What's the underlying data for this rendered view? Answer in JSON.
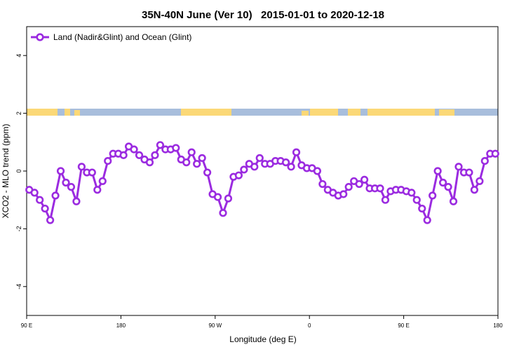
{
  "chart_data": {
    "type": "line",
    "title": "35N-40N June (Ver 10)   2015-01-01 to 2020-12-18",
    "x_label": "Longitude (deg E)",
    "y_label": "XCO2 - MLO trend (ppm)",
    "xlim": [
      90,
      540
    ],
    "xticks": [
      {
        "value": 90,
        "label": "90 E"
      },
      180,
      {
        "value": 270,
        "label": "90 W"
      },
      {
        "value": 360,
        "label": "0"
      },
      {
        "value": 450,
        "label": "90 E"
      },
      {
        "value": 540,
        "label": "180"
      }
    ],
    "ylim": [
      -5,
      5
    ],
    "yticks": [
      -4,
      -2,
      0,
      2,
      4
    ],
    "legend": "top-left",
    "x": [
      92.5,
      97.5,
      102.5,
      107.5,
      112.5,
      117.5,
      122.5,
      127.5,
      132.5,
      137.5,
      142.5,
      147.5,
      152.5,
      157.5,
      162.5,
      167.5,
      172.5,
      177.5,
      182.5,
      187.5,
      192.5,
      197.5,
      202.5,
      207.5,
      212.5,
      217.5,
      222.5,
      227.5,
      232.5,
      237.5,
      242.5,
      247.5,
      252.5,
      257.5,
      262.5,
      267.5,
      272.5,
      277.5,
      282.5,
      287.5,
      292.5,
      297.5,
      302.5,
      307.5,
      312.5,
      317.5,
      322.5,
      327.5,
      332.5,
      337.5,
      342.5,
      347.5,
      352.5,
      357.5,
      362.5,
      367.5,
      372.5,
      377.5,
      382.5,
      387.5,
      392.5,
      397.5,
      402.5,
      407.5,
      412.5,
      417.5,
      422.5,
      427.5,
      432.5,
      437.5,
      442.5,
      447.5,
      452.5,
      457.5,
      462.5,
      467.5,
      472.5,
      477.5,
      482.5,
      487.5,
      492.5,
      497.5,
      502.5,
      507.5,
      512.5,
      517.5,
      522.5,
      527.5,
      532.5,
      537.5
    ],
    "series": [
      {
        "name": "Land (Nadir&Glint) and Ocean (Glint)",
        "color": "#9b2be0",
        "values": [
          -0.65,
          -0.75,
          -1.0,
          -1.3,
          -1.7,
          -0.85,
          0.0,
          -0.4,
          -0.55,
          -1.05,
          0.15,
          -0.05,
          -0.05,
          -0.65,
          -0.35,
          0.35,
          0.6,
          0.6,
          0.55,
          0.85,
          0.75,
          0.55,
          0.4,
          0.3,
          0.55,
          0.9,
          0.75,
          0.75,
          0.8,
          0.4,
          0.3,
          0.65,
          0.25,
          0.45,
          -0.05,
          -0.8,
          -0.9,
          -1.45,
          -0.95,
          -0.2,
          -0.15,
          0.05,
          0.25,
          0.15,
          0.45,
          0.25,
          0.25,
          0.35,
          0.35,
          0.3,
          0.15,
          0.65,
          0.2,
          0.1,
          0.1,
          0.0,
          -0.45,
          -0.65,
          -0.75,
          -0.85,
          -0.8,
          -0.55,
          -0.35,
          -0.45,
          -0.3,
          -0.6,
          -0.6,
          -0.6,
          -1.0,
          -0.7,
          -0.65,
          -0.65,
          -0.7,
          -0.75,
          -1.0,
          -1.3,
          -1.7,
          -0.85,
          0.0,
          -0.4,
          -0.55,
          -1.05,
          0.15,
          -0.05,
          -0.05,
          -0.65,
          -0.35,
          0.35,
          0.6,
          0.6
        ]
      }
    ]
  }
}
